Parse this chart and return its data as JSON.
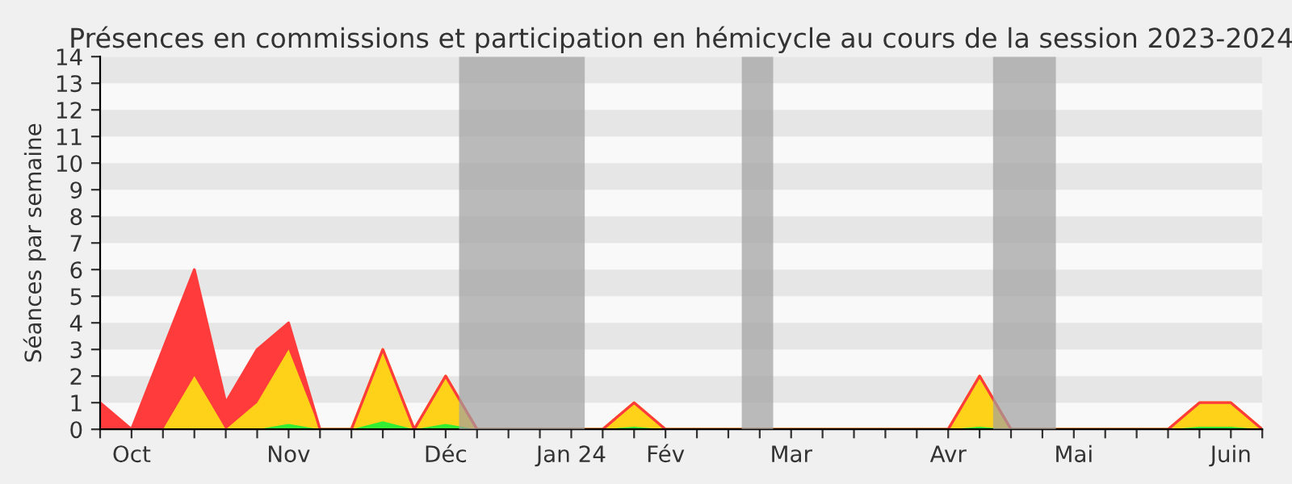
{
  "chart_data": {
    "type": "area",
    "stacked": true,
    "title": "Présences en commissions et participation en hémicycle au cours de la session 2023-2024",
    "ylabel": "Séances par semaine",
    "x": [
      "2023-09-29",
      "2023-10-06",
      "2023-10-13",
      "2023-10-20",
      "2023-10-27",
      "2023-11-03",
      "2023-11-10",
      "2023-11-17",
      "2023-11-24",
      "2023-12-01",
      "2023-12-08",
      "2023-12-15",
      "2023-12-22",
      "2023-12-29",
      "2024-01-05",
      "2024-01-12",
      "2024-01-19",
      "2024-01-26",
      "2024-02-02",
      "2024-02-09",
      "2024-02-16",
      "2024-02-23",
      "2024-03-01",
      "2024-03-08",
      "2024-03-15",
      "2024-03-22",
      "2024-03-29",
      "2024-04-05",
      "2024-04-12",
      "2024-04-19",
      "2024-04-26",
      "2024-05-03",
      "2024-05-10",
      "2024-05-17",
      "2024-05-24",
      "2024-05-31",
      "2024-06-07",
      "2024-06-14"
    ],
    "series": [
      {
        "color": "#33ee33",
        "values": [
          0,
          0,
          0,
          0,
          0,
          0,
          0.2,
          0,
          0,
          0.3,
          0,
          0.2,
          0,
          0,
          0,
          0,
          0,
          0.1,
          0,
          0,
          0,
          0,
          0,
          0,
          0,
          0,
          0,
          0,
          0.1,
          0,
          0,
          0,
          0,
          0,
          0,
          0.1,
          0.1,
          0
        ]
      },
      {
        "color": "#ffd21a",
        "values": [
          0,
          0,
          0,
          2,
          0,
          1,
          2.8,
          0,
          0,
          2.7,
          0,
          1.8,
          0,
          0,
          0,
          0,
          0,
          0.9,
          0,
          0,
          0,
          0,
          0,
          0,
          0,
          0,
          0,
          0,
          1.9,
          0,
          0,
          0,
          0,
          0,
          0,
          0.9,
          0.9,
          0
        ]
      },
      {
        "color": "#ff3b3b",
        "values": [
          1,
          0,
          3,
          4,
          1,
          2,
          1,
          0,
          0,
          0,
          0,
          0,
          0,
          0,
          0,
          0,
          0,
          0,
          0,
          0,
          0,
          0,
          0,
          0,
          0,
          0,
          0,
          0,
          0,
          0,
          0,
          0,
          0,
          0,
          0,
          0,
          0,
          0
        ]
      }
    ],
    "xlim": [
      "2023-09-29",
      "2024-06-14"
    ],
    "ylim": [
      0,
      14
    ],
    "yticks": [
      0,
      1,
      2,
      3,
      4,
      5,
      6,
      7,
      8,
      9,
      10,
      11,
      12,
      13,
      14
    ],
    "xticks": [
      {
        "value": "2023-09-29",
        "label": null
      },
      {
        "value": "2023-10-06",
        "label": "Oct"
      },
      {
        "value": "2023-10-13",
        "label": null
      },
      {
        "value": "2023-10-20",
        "label": null
      },
      {
        "value": "2023-10-27",
        "label": null
      },
      {
        "value": "2023-11-03",
        "label": null
      },
      {
        "value": "2023-11-10",
        "label": "Nov"
      },
      {
        "value": "2023-11-17",
        "label": null
      },
      {
        "value": "2023-11-24",
        "label": null
      },
      {
        "value": "2023-12-01",
        "label": null
      },
      {
        "value": "2023-12-08",
        "label": null
      },
      {
        "value": "2023-12-15",
        "label": "Déc"
      },
      {
        "value": "2023-12-22",
        "label": null
      },
      {
        "value": "2023-12-29",
        "label": null
      },
      {
        "value": "2024-01-05",
        "label": null
      },
      {
        "value": "2024-01-12",
        "label": "Jan 24"
      },
      {
        "value": "2024-01-19",
        "label": null
      },
      {
        "value": "2024-01-26",
        "label": null
      },
      {
        "value": "2024-02-02",
        "label": "Fév"
      },
      {
        "value": "2024-02-09",
        "label": null
      },
      {
        "value": "2024-02-16",
        "label": null
      },
      {
        "value": "2024-02-23",
        "label": null
      },
      {
        "value": "2024-03-01",
        "label": "Mar"
      },
      {
        "value": "2024-03-08",
        "label": null
      },
      {
        "value": "2024-03-15",
        "label": null
      },
      {
        "value": "2024-03-22",
        "label": null
      },
      {
        "value": "2024-03-29",
        "label": null
      },
      {
        "value": "2024-04-05",
        "label": "Avr"
      },
      {
        "value": "2024-04-12",
        "label": null
      },
      {
        "value": "2024-04-19",
        "label": null
      },
      {
        "value": "2024-04-26",
        "label": null
      },
      {
        "value": "2024-05-03",
        "label": "Mai"
      },
      {
        "value": "2024-05-10",
        "label": null
      },
      {
        "value": "2024-05-17",
        "label": null
      },
      {
        "value": "2024-05-24",
        "label": null
      },
      {
        "value": "2024-05-31",
        "label": null
      },
      {
        "value": "2024-06-07",
        "label": "Juin"
      },
      {
        "value": "2024-06-14",
        "label": null
      }
    ],
    "bands": [
      {
        "axis": "x",
        "from": "2023-12-18",
        "to": "2024-01-15",
        "color": "#a0a0a0"
      },
      {
        "axis": "x",
        "from": "2024-02-19",
        "to": "2024-02-26",
        "color": "#a0a0a0"
      },
      {
        "axis": "x",
        "from": "2024-04-15",
        "to": "2024-04-29",
        "color": "#a0a0a0"
      }
    ],
    "legend": false
  }
}
